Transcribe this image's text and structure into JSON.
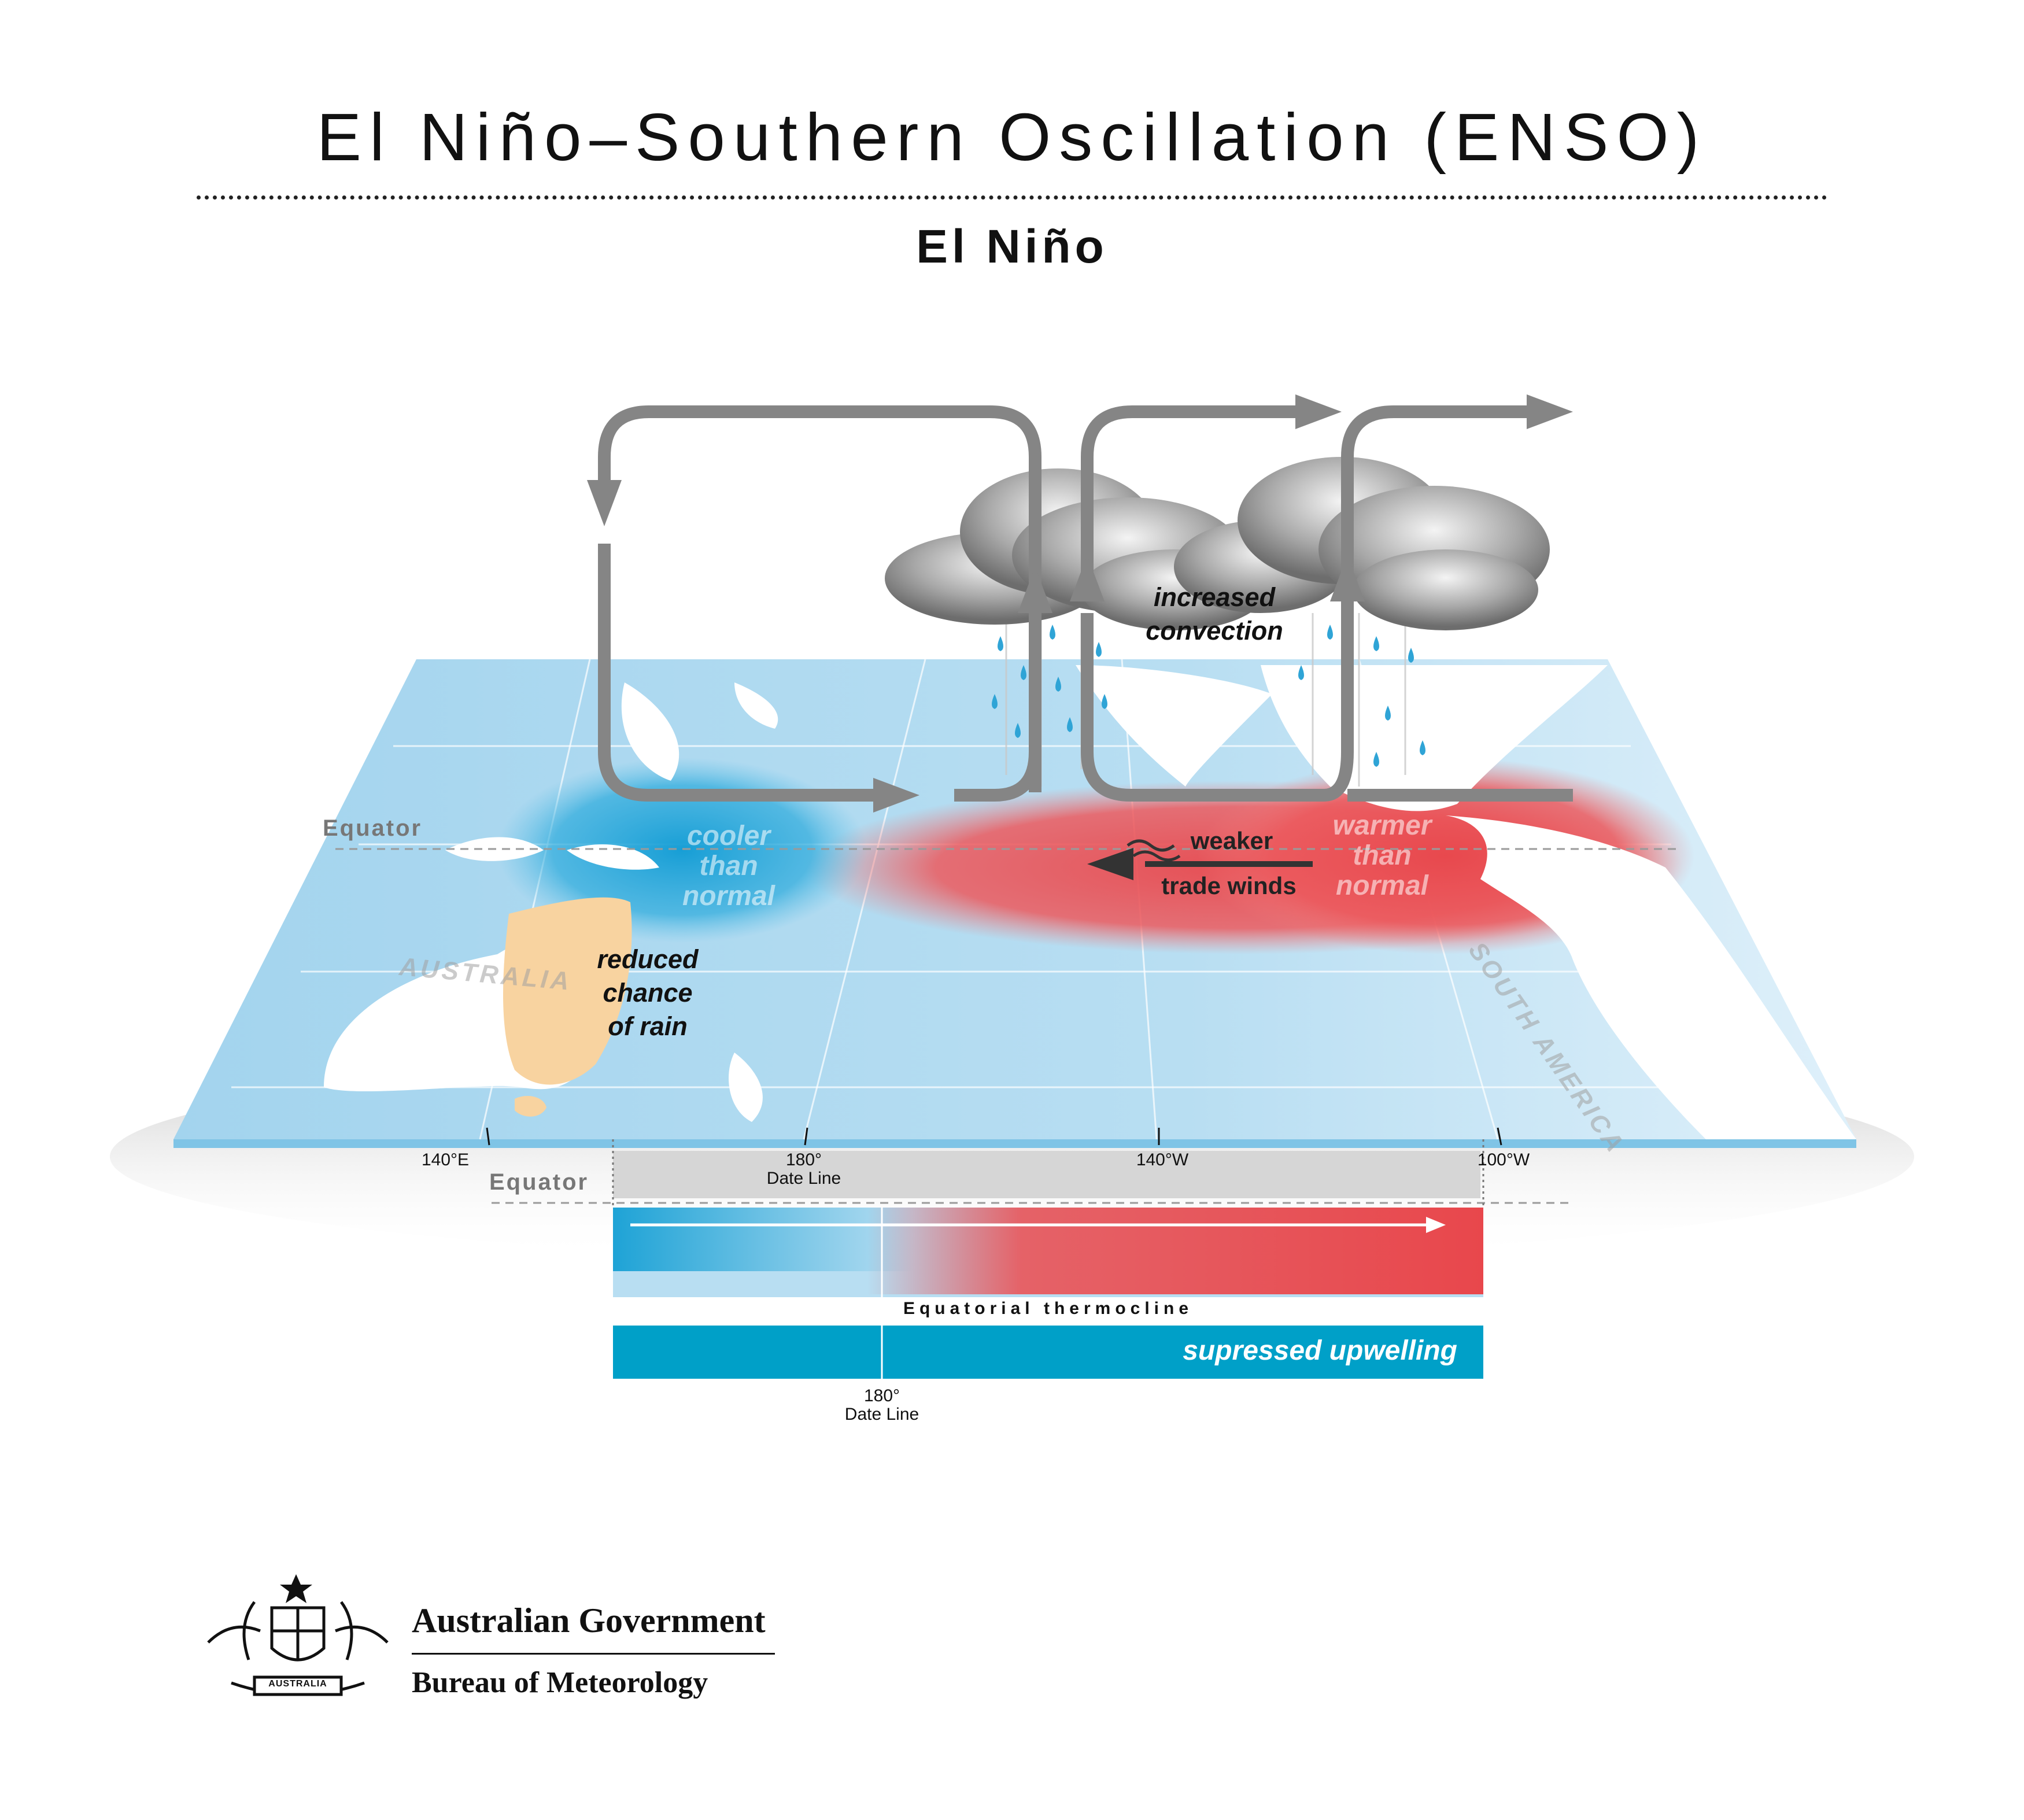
{
  "title": "El Niño–Southern Oscillation (ENSO)",
  "subtitle": "El Niño",
  "map": {
    "equator_label": "Equator",
    "longitude_ticks": [
      "140°E",
      "180°",
      "140°W",
      "100°W"
    ],
    "date_line_label": "Date Line",
    "land_names": [
      "AUSTRALIA",
      "SOUTH AMERICA"
    ],
    "cool_note": [
      "cooler",
      "than",
      "normal"
    ],
    "warm_note": [
      "warmer",
      "than",
      "normal"
    ],
    "rain_note": [
      "reduced",
      "chance",
      "of rain"
    ],
    "convection_note": [
      "increased",
      "convection"
    ],
    "wind_note": [
      "weaker",
      "trade winds"
    ]
  },
  "cross_section": {
    "equator_label": "Equator",
    "thermocline_label": "Equatorial thermocline",
    "upwelling_label": "supressed upwelling",
    "tick_value": "180°",
    "tick_caption": "Date Line"
  },
  "logo": {
    "government": "Australian Government",
    "agency": "Bureau of Meteorology",
    "crest_text": "AUSTRALIA"
  },
  "colors": {
    "ocean": "#a9d7ef",
    "warm_anomaly": "#e8474c",
    "cool_anomaly": "#1ea3d6",
    "dry_land": "#f8d3a0",
    "arrow": "#858585",
    "upwelling_band": "#00a0c8"
  }
}
